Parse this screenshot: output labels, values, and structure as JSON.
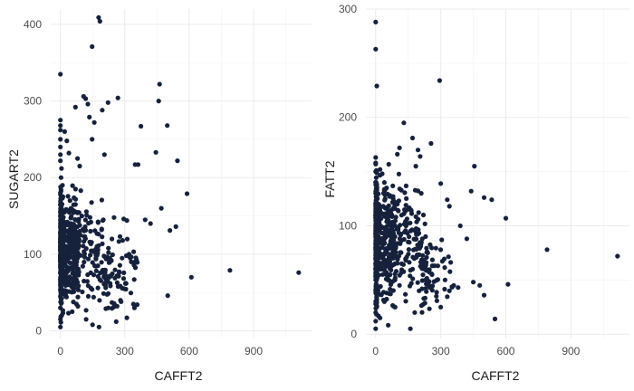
{
  "chart_data": [
    {
      "type": "scatter",
      "xlabel": "CAFFT2",
      "ylabel": "SUGART2",
      "xlim": [
        -45,
        1170
      ],
      "ylim": [
        -10,
        420
      ],
      "xticks": [
        0,
        300,
        600,
        900
      ],
      "yticks": [
        0,
        100,
        200,
        300,
        400
      ],
      "grid": true,
      "color": "#16213c",
      "point_count_approx": 900,
      "points": [
        [
          0,
          335
        ],
        [
          0,
          275
        ],
        [
          0,
          268
        ],
        [
          0,
          262
        ],
        [
          0,
          250
        ],
        [
          0,
          240
        ],
        [
          0,
          230
        ],
        [
          0,
          222
        ],
        [
          5,
          212
        ],
        [
          3,
          200
        ],
        [
          10,
          190
        ],
        [
          12,
          175
        ],
        [
          20,
          260
        ],
        [
          30,
          248
        ],
        [
          40,
          232
        ],
        [
          70,
          292
        ],
        [
          80,
          225
        ],
        [
          90,
          215
        ],
        [
          95,
          183
        ],
        [
          108,
          306
        ],
        [
          118,
          303
        ],
        [
          128,
          296
        ],
        [
          135,
          279
        ],
        [
          148,
          371
        ],
        [
          178,
          409
        ],
        [
          184,
          404
        ],
        [
          158,
          272
        ],
        [
          148,
          250
        ],
        [
          195,
          288
        ],
        [
          205,
          230
        ],
        [
          222,
          298
        ],
        [
          268,
          304
        ],
        [
          348,
          217
        ],
        [
          362,
          217
        ],
        [
          375,
          267
        ],
        [
          445,
          233
        ],
        [
          458,
          300
        ],
        [
          462,
          322
        ],
        [
          498,
          268
        ],
        [
          470,
          160
        ],
        [
          545,
          222
        ],
        [
          395,
          145
        ],
        [
          420,
          140
        ],
        [
          510,
          131
        ],
        [
          538,
          136
        ],
        [
          590,
          179
        ],
        [
          610,
          70
        ],
        [
          500,
          46
        ],
        [
          790,
          79
        ],
        [
          1110,
          76
        ],
        [
          250,
          148
        ],
        [
          295,
          146
        ],
        [
          290,
          118
        ],
        [
          310,
          144
        ],
        [
          320,
          100
        ],
        [
          330,
          90
        ],
        [
          345,
          30
        ],
        [
          310,
          17
        ],
        [
          260,
          12
        ],
        [
          280,
          40
        ],
        [
          180,
          5
        ],
        [
          150,
          8
        ],
        [
          120,
          15
        ],
        [
          240,
          120
        ],
        [
          230,
          95
        ],
        [
          210,
          60
        ],
        [
          200,
          145
        ],
        [
          170,
          110
        ],
        [
          160,
          85
        ],
        [
          140,
          130
        ],
        [
          130,
          45
        ],
        [
          110,
          65
        ],
        [
          100,
          150
        ],
        [
          90,
          130
        ],
        [
          85,
          100
        ],
        [
          80,
          55
        ],
        [
          75,
          35
        ],
        [
          70,
          165
        ],
        [
          65,
          120
        ],
        [
          60,
          75
        ],
        [
          55,
          25
        ],
        [
          50,
          140
        ],
        [
          45,
          170
        ],
        [
          40,
          95
        ],
        [
          35,
          60
        ],
        [
          30,
          110
        ],
        [
          25,
          45
        ],
        [
          20,
          155
        ],
        [
          15,
          130
        ],
        [
          10,
          80
        ],
        [
          8,
          50
        ],
        [
          6,
          20
        ],
        [
          4,
          115
        ],
        [
          2,
          95
        ],
        [
          1,
          70
        ],
        [
          0,
          5
        ],
        [
          0,
          15
        ],
        [
          0,
          30
        ],
        [
          0,
          45
        ],
        [
          0,
          60
        ],
        [
          0,
          75
        ],
        [
          0,
          90
        ],
        [
          0,
          105
        ],
        [
          0,
          120
        ],
        [
          0,
          135
        ],
        [
          0,
          150
        ],
        [
          0,
          165
        ],
        [
          0,
          180
        ]
      ]
    },
    {
      "type": "scatter",
      "xlabel": "CAFFT2",
      "ylabel": "FATT2",
      "xlim": [
        -45,
        1170
      ],
      "ylim": [
        -4,
        300
      ],
      "xticks": [
        0,
        300,
        600,
        900
      ],
      "yticks": [
        0,
        100,
        200,
        300
      ],
      "grid": true,
      "color": "#16213c",
      "point_count_approx": 900,
      "points": [
        [
          0,
          288
        ],
        [
          0,
          263
        ],
        [
          5,
          229
        ],
        [
          295,
          234
        ],
        [
          130,
          195
        ],
        [
          170,
          181
        ],
        [
          195,
          170
        ],
        [
          255,
          176
        ],
        [
          110,
          172
        ],
        [
          100,
          166
        ],
        [
          185,
          155
        ],
        [
          205,
          164
        ],
        [
          0,
          163
        ],
        [
          0,
          158
        ],
        [
          0,
          150
        ],
        [
          20,
          152
        ],
        [
          30,
          148
        ],
        [
          40,
          140
        ],
        [
          50,
          135
        ],
        [
          300,
          139
        ],
        [
          330,
          124
        ],
        [
          340,
          118
        ],
        [
          455,
          155
        ],
        [
          440,
          132
        ],
        [
          500,
          126
        ],
        [
          535,
          124
        ],
        [
          600,
          107
        ],
        [
          390,
          100
        ],
        [
          420,
          88
        ],
        [
          450,
          48
        ],
        [
          480,
          45
        ],
        [
          500,
          36
        ],
        [
          550,
          14
        ],
        [
          610,
          46
        ],
        [
          790,
          78
        ],
        [
          1115,
          72
        ],
        [
          360,
          45
        ],
        [
          380,
          43
        ],
        [
          340,
          40
        ],
        [
          320,
          50
        ],
        [
          300,
          25
        ],
        [
          280,
          35
        ],
        [
          260,
          55
        ],
        [
          240,
          75
        ],
        [
          230,
          90
        ],
        [
          220,
          110
        ],
        [
          210,
          130
        ],
        [
          200,
          40
        ],
        [
          180,
          20
        ],
        [
          170,
          60
        ],
        [
          160,
          5
        ],
        [
          150,
          85
        ],
        [
          140,
          100
        ],
        [
          120,
          65
        ],
        [
          110,
          45
        ],
        [
          100,
          120
        ],
        [
          90,
          25
        ],
        [
          80,
          70
        ],
        [
          70,
          95
        ],
        [
          60,
          50
        ],
        [
          50,
          110
        ],
        [
          40,
          30
        ],
        [
          30,
          80
        ],
        [
          25,
          60
        ],
        [
          20,
          15
        ],
        [
          15,
          100
        ],
        [
          10,
          40
        ],
        [
          8,
          125
        ],
        [
          5,
          75
        ],
        [
          3,
          55
        ],
        [
          2,
          140
        ],
        [
          1,
          95
        ],
        [
          0,
          5
        ],
        [
          0,
          12
        ],
        [
          0,
          20
        ],
        [
          0,
          30
        ],
        [
          0,
          40
        ],
        [
          0,
          50
        ],
        [
          0,
          60
        ],
        [
          0,
          70
        ],
        [
          0,
          80
        ],
        [
          0,
          90
        ],
        [
          0,
          100
        ],
        [
          0,
          110
        ],
        [
          0,
          120
        ],
        [
          0,
          130
        ],
        [
          0,
          140
        ]
      ]
    }
  ]
}
